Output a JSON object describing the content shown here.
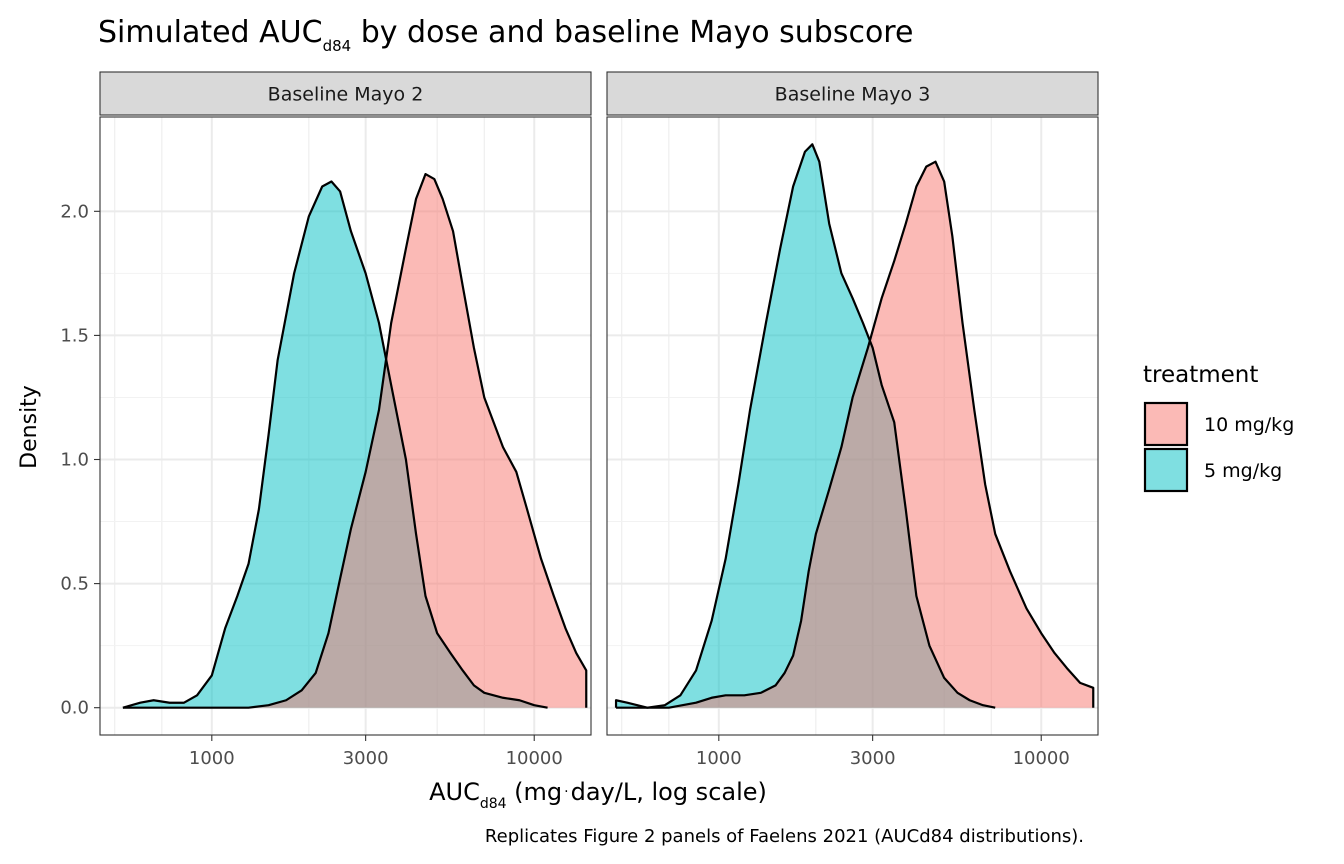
{
  "chart_data": {
    "type": "density",
    "title": {
      "main": "Simulated AUC",
      "sub": "d84",
      "rest": " by dose and baseline Mayo subscore"
    },
    "xlabel": {
      "main": "AUC",
      "sub": "d84",
      "rest": " (mg",
      "dot": "·",
      "rest2": "day/L, log scale)"
    },
    "ylabel": "Density",
    "caption": "Replicates Figure 2 panels of Faelens 2021 (AUCd84 distributions).",
    "x_scale": "log10",
    "xlim": [
      450,
      15000
    ],
    "ylim": [
      -0.11,
      2.38
    ],
    "x_ticks": [
      {
        "value": 1000,
        "label": "1000"
      },
      {
        "value": 3000,
        "label": "3000"
      },
      {
        "value": 10000,
        "label": "10000"
      }
    ],
    "x_minor": [
      300,
      500,
      700,
      1000,
      2000,
      3000,
      5000,
      7000,
      10000,
      20000
    ],
    "y_ticks": [
      {
        "value": 0.0,
        "label": "0.0"
      },
      {
        "value": 0.5,
        "label": "0.5"
      },
      {
        "value": 1.0,
        "label": "1.0"
      },
      {
        "value": 1.5,
        "label": "1.5"
      },
      {
        "value": 2.0,
        "label": "2.0"
      }
    ],
    "legend": {
      "title": "treatment",
      "position": "right",
      "entries": [
        {
          "name": "10 mg/kg",
          "color": "#F8766D"
        },
        {
          "name": "5 mg/kg",
          "color": "#00BFC4"
        }
      ]
    },
    "fill_alpha": 0.5,
    "panels": [
      {
        "label": "Baseline Mayo 2",
        "series": [
          {
            "name": "5 mg/kg",
            "color": "#00BFC4",
            "points": [
              [
                530,
                0.0
              ],
              [
                600,
                0.02
              ],
              [
                660,
                0.03
              ],
              [
                740,
                0.02
              ],
              [
                820,
                0.02
              ],
              [
                900,
                0.05
              ],
              [
                1000,
                0.13
              ],
              [
                1100,
                0.32
              ],
              [
                1200,
                0.45
              ],
              [
                1300,
                0.58
              ],
              [
                1400,
                0.8
              ],
              [
                1500,
                1.1
              ],
              [
                1600,
                1.4
              ],
              [
                1800,
                1.75
              ],
              [
                2000,
                1.98
              ],
              [
                2200,
                2.1
              ],
              [
                2350,
                2.12
              ],
              [
                2500,
                2.08
              ],
              [
                2700,
                1.92
              ],
              [
                3000,
                1.75
              ],
              [
                3300,
                1.55
              ],
              [
                3600,
                1.3
              ],
              [
                4000,
                1.0
              ],
              [
                4300,
                0.7
              ],
              [
                4600,
                0.45
              ],
              [
                5000,
                0.3
              ],
              [
                5500,
                0.22
              ],
              [
                6000,
                0.15
              ],
              [
                6500,
                0.09
              ],
              [
                7000,
                0.06
              ],
              [
                8000,
                0.04
              ],
              [
                9000,
                0.03
              ],
              [
                10000,
                0.01
              ],
              [
                11000,
                0.0
              ]
            ]
          },
          {
            "name": "10 mg/kg",
            "color": "#F8766D",
            "points": [
              [
                530,
                0.0
              ],
              [
                1000,
                0.0
              ],
              [
                1300,
                0.0
              ],
              [
                1500,
                0.01
              ],
              [
                1700,
                0.03
              ],
              [
                1900,
                0.07
              ],
              [
                2100,
                0.14
              ],
              [
                2300,
                0.3
              ],
              [
                2500,
                0.52
              ],
              [
                2700,
                0.72
              ],
              [
                3000,
                0.95
              ],
              [
                3300,
                1.2
              ],
              [
                3600,
                1.55
              ],
              [
                4000,
                1.85
              ],
              [
                4300,
                2.05
              ],
              [
                4600,
                2.15
              ],
              [
                4900,
                2.13
              ],
              [
                5200,
                2.05
              ],
              [
                5600,
                1.92
              ],
              [
                6000,
                1.7
              ],
              [
                6500,
                1.45
              ],
              [
                7000,
                1.25
              ],
              [
                8000,
                1.05
              ],
              [
                8800,
                0.95
              ],
              [
                9500,
                0.8
              ],
              [
                10500,
                0.6
              ],
              [
                11500,
                0.45
              ],
              [
                12500,
                0.32
              ],
              [
                13500,
                0.22
              ],
              [
                14500,
                0.15
              ],
              [
                14500,
                0.0
              ]
            ]
          }
        ]
      },
      {
        "label": "Baseline Mayo 3",
        "series": [
          {
            "name": "5 mg/kg",
            "color": "#00BFC4",
            "points": [
              [
                480,
                0.03
              ],
              [
                520,
                0.02
              ],
              [
                600,
                0.0
              ],
              [
                680,
                0.01
              ],
              [
                760,
                0.05
              ],
              [
                850,
                0.15
              ],
              [
                950,
                0.35
              ],
              [
                1050,
                0.6
              ],
              [
                1150,
                0.9
              ],
              [
                1250,
                1.2
              ],
              [
                1400,
                1.55
              ],
              [
                1550,
                1.85
              ],
              [
                1700,
                2.1
              ],
              [
                1850,
                2.24
              ],
              [
                1950,
                2.27
              ],
              [
                2050,
                2.2
              ],
              [
                2200,
                1.95
              ],
              [
                2400,
                1.75
              ],
              [
                2600,
                1.65
              ],
              [
                2800,
                1.55
              ],
              [
                3000,
                1.45
              ],
              [
                3200,
                1.3
              ],
              [
                3500,
                1.15
              ],
              [
                3800,
                0.8
              ],
              [
                4100,
                0.45
              ],
              [
                4500,
                0.25
              ],
              [
                5000,
                0.12
              ],
              [
                5500,
                0.06
              ],
              [
                6000,
                0.03
              ],
              [
                6600,
                0.01
              ],
              [
                7200,
                0.0
              ]
            ]
          },
          {
            "name": "10 mg/kg",
            "color": "#F8766D",
            "points": [
              [
                480,
                0.0
              ],
              [
                700,
                0.0
              ],
              [
                850,
                0.02
              ],
              [
                950,
                0.04
              ],
              [
                1050,
                0.05
              ],
              [
                1200,
                0.05
              ],
              [
                1350,
                0.06
              ],
              [
                1500,
                0.09
              ],
              [
                1600,
                0.14
              ],
              [
                1700,
                0.21
              ],
              [
                1800,
                0.35
              ],
              [
                1900,
                0.55
              ],
              [
                2000,
                0.7
              ],
              [
                2200,
                0.88
              ],
              [
                2400,
                1.05
              ],
              [
                2600,
                1.25
              ],
              [
                2900,
                1.45
              ],
              [
                3200,
                1.65
              ],
              [
                3500,
                1.8
              ],
              [
                3800,
                1.95
              ],
              [
                4100,
                2.1
              ],
              [
                4400,
                2.18
              ],
              [
                4700,
                2.2
              ],
              [
                5000,
                2.12
              ],
              [
                5300,
                1.9
              ],
              [
                5700,
                1.55
              ],
              [
                6200,
                1.2
              ],
              [
                6700,
                0.9
              ],
              [
                7200,
                0.7
              ],
              [
                8000,
                0.55
              ],
              [
                9000,
                0.4
              ],
              [
                10000,
                0.3
              ],
              [
                11000,
                0.22
              ],
              [
                12000,
                0.16
              ],
              [
                13200,
                0.1
              ],
              [
                14500,
                0.08
              ],
              [
                14500,
                0.0
              ]
            ]
          }
        ]
      }
    ]
  }
}
